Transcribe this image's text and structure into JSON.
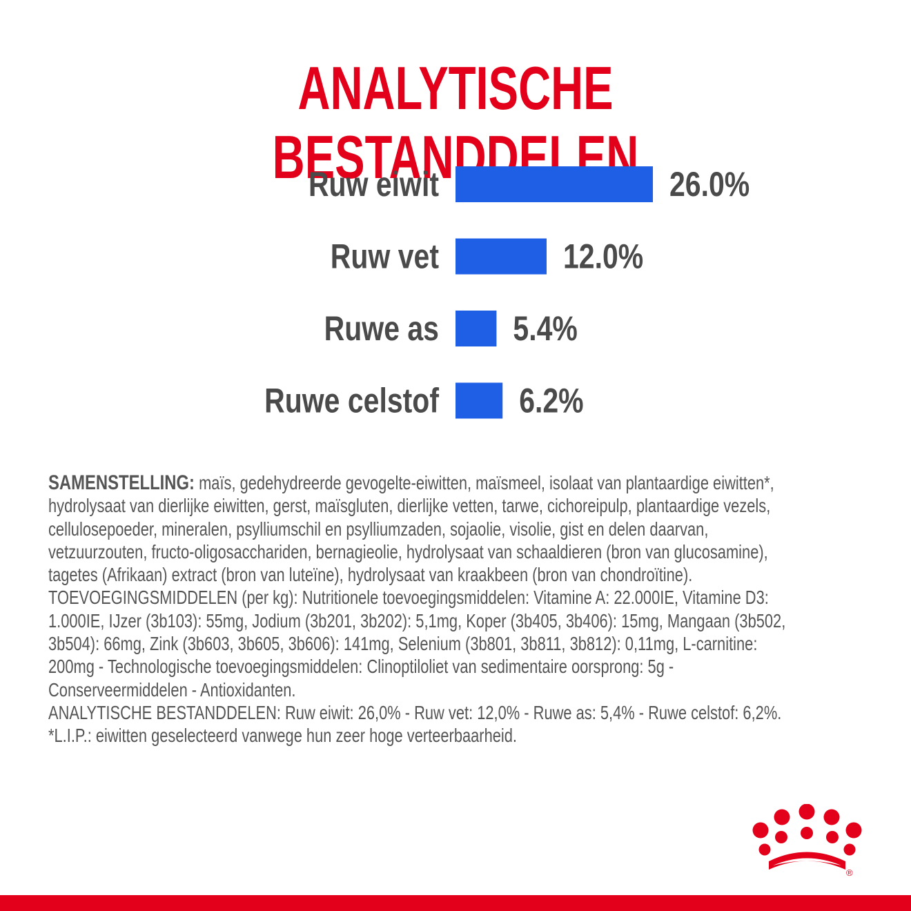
{
  "colors": {
    "brand_red": "#e2001a",
    "bar_blue": "#1f5fe6",
    "text_gray": "#4a4a4a"
  },
  "chart_data": {
    "type": "bar",
    "orientation": "horizontal",
    "title": "ANALYTISCHE BESTANDDELEN",
    "categories": [
      "Ruw eiwit",
      "Ruw vet",
      "Ruwe as",
      "Ruwe celstof"
    ],
    "values": [
      26.0,
      12.0,
      5.4,
      6.2
    ],
    "value_labels": [
      "26.0%",
      "12.0%",
      "5.4%",
      "6.2%"
    ],
    "unit": "%",
    "grid": false,
    "legend": "none"
  },
  "composition": {
    "heading": "SAMENSTELLING:",
    "lines": [
      " maïs, gedehydreerde gevogelte-eiwitten, maïsmeel, isolaat van plantaardige eiwitten*,",
      "hydrolysaat van dierlijke eiwitten, gerst, maïsgluten, dierlijke vetten, tarwe, cichoreipulp, plantaardige vezels,",
      "cellulosepoeder, mineralen, psylliumschil en psylliumzaden, sojaolie, visolie, gist en delen daarvan,",
      "vetzuurzouten, fructo-oligosacchariden, bernagieolie, hydrolysaat van schaaldieren (bron van glucosamine),",
      "tagetes (Afrikaan) extract (bron van luteïne), hydrolysaat van kraakbeen (bron van chondroïtine).",
      "TOEVOEGINGSMIDDELEN (per kg): Nutritionele toevoegingsmiddelen: Vitamine A: 22.000IE, Vitamine D3:",
      "1.000IE, IJzer (3b103): 55mg, Jodium (3b201, 3b202): 5,1mg, Koper (3b405, 3b406): 15mg, Mangaan (3b502,",
      "3b504): 66mg, Zink (3b603, 3b605, 3b606): 141mg, Selenium (3b801, 3b811, 3b812): 0,11mg, L-carnitine:",
      "200mg - Technologische toevoegingsmiddelen: Clinoptiloliet van sedimentaire oorsprong: 5g -",
      "Conserveermiddelen - Antioxidanten.",
      "ANALYTISCHE BESTANDDELEN: Ruw eiwit: 26,0% - Ruw vet: 12,0% - Ruwe as: 5,4% - Ruwe celstof: 6,2%.",
      "*L.I.P.: eiwitten geselecteerd vanwege hun zeer hoge verteerbaarheid."
    ]
  },
  "logo": {
    "icon": "crown-icon",
    "mark": "®"
  }
}
